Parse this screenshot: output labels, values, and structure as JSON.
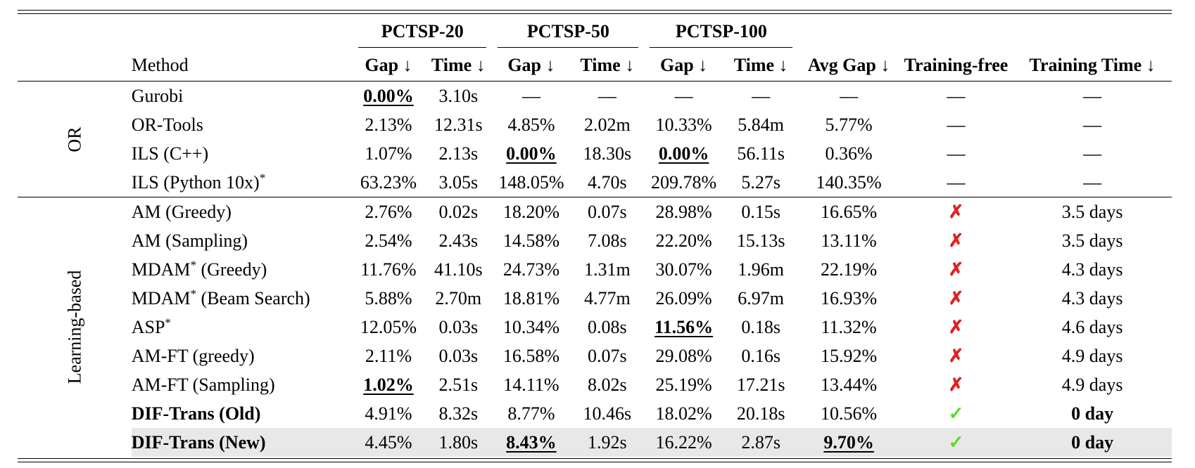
{
  "header": {
    "group_labels": [
      "PCTSP-20",
      "PCTSP-50",
      "PCTSP-100"
    ],
    "method_label": "Method",
    "column_labels": [
      "Gap ↓",
      "Time ↓",
      "Gap ↓",
      "Time ↓",
      "Gap ↓",
      "Time ↓",
      "Avg Gap ↓",
      "Training-free",
      "Training Time ↓"
    ]
  },
  "sections": [
    {
      "label": "OR",
      "rows": [
        {
          "method": "Gurobi",
          "sup": "",
          "cells": [
            "0.00%",
            "3.10s",
            "—",
            "—",
            "—",
            "—",
            "—",
            "—",
            "—"
          ],
          "best": [
            0
          ]
        },
        {
          "method": "OR-Tools",
          "sup": "",
          "cells": [
            "2.13%",
            "12.31s",
            "4.85%",
            "2.02m",
            "10.33%",
            "5.84m",
            "5.77%",
            "—",
            "—"
          ],
          "best": []
        },
        {
          "method": "ILS (C++)",
          "sup": "",
          "cells": [
            "1.07%",
            "2.13s",
            "0.00%",
            "18.30s",
            "0.00%",
            "56.11s",
            "0.36%",
            "—",
            "—"
          ],
          "best": [
            2,
            4
          ]
        },
        {
          "method": "ILS (Python 10x)",
          "sup": "*",
          "cells": [
            "63.23%",
            "3.05s",
            "148.05%",
            "4.70s",
            "209.78%",
            "5.27s",
            "140.35%",
            "—",
            "—"
          ],
          "best": []
        }
      ]
    },
    {
      "label": "Learning-based",
      "rows": [
        {
          "method": "AM (Greedy)",
          "sup": "",
          "cells": [
            "2.76%",
            "0.02s",
            "18.20%",
            "0.07s",
            "28.98%",
            "0.15s",
            "16.65%",
            "✗",
            "3.5 days"
          ],
          "best": []
        },
        {
          "method": "AM (Sampling)",
          "sup": "",
          "cells": [
            "2.54%",
            "2.43s",
            "14.58%",
            "7.08s",
            "22.20%",
            "15.13s",
            "13.11%",
            "✗",
            "3.5 days"
          ],
          "best": []
        },
        {
          "method": "MDAM",
          "sup": "*",
          "suffix": " (Greedy)",
          "cells": [
            "11.76%",
            "41.10s",
            "24.73%",
            "1.31m",
            "30.07%",
            "1.96m",
            "22.19%",
            "✗",
            "4.3 days"
          ],
          "best": []
        },
        {
          "method": "MDAM",
          "sup": "*",
          "suffix": " (Beam Search)",
          "cells": [
            "5.88%",
            "2.70m",
            "18.81%",
            "4.77m",
            "26.09%",
            "6.97m",
            "16.93%",
            "✗",
            "4.3 days"
          ],
          "best": []
        },
        {
          "method": "ASP",
          "sup": "*",
          "cells": [
            "12.05%",
            "0.03s",
            "10.34%",
            "0.08s",
            "11.56%",
            "0.18s",
            "11.32%",
            "✗",
            "4.6 days"
          ],
          "best": [
            4
          ]
        },
        {
          "method": "AM-FT (greedy)",
          "sup": "",
          "cells": [
            "2.11%",
            "0.03s",
            "16.58%",
            "0.07s",
            "29.08%",
            "0.16s",
            "15.92%",
            "✗",
            "4.9 days"
          ],
          "best": []
        },
        {
          "method": "AM-FT (Sampling)",
          "sup": "",
          "cells": [
            "1.02%",
            "2.51s",
            "14.11%",
            "8.02s",
            "25.19%",
            "17.21s",
            "13.44%",
            "✗",
            "4.9 days"
          ],
          "best": [
            0
          ]
        },
        {
          "method": "DIF-Trans (Old)",
          "sup": "",
          "bold": true,
          "cells": [
            "4.91%",
            "8.32s",
            "8.77%",
            "10.46s",
            "18.02%",
            "20.18s",
            "10.56%",
            "✓",
            "0 day"
          ],
          "best": []
        },
        {
          "method": "DIF-Trans (New)",
          "sup": "",
          "bold": true,
          "highlight": true,
          "cells": [
            "4.45%",
            "1.80s",
            "8.43%",
            "1.92s",
            "16.22%",
            "2.87s",
            "9.70%",
            "✓",
            "0 day"
          ],
          "best": [
            2,
            6
          ]
        }
      ]
    }
  ]
}
